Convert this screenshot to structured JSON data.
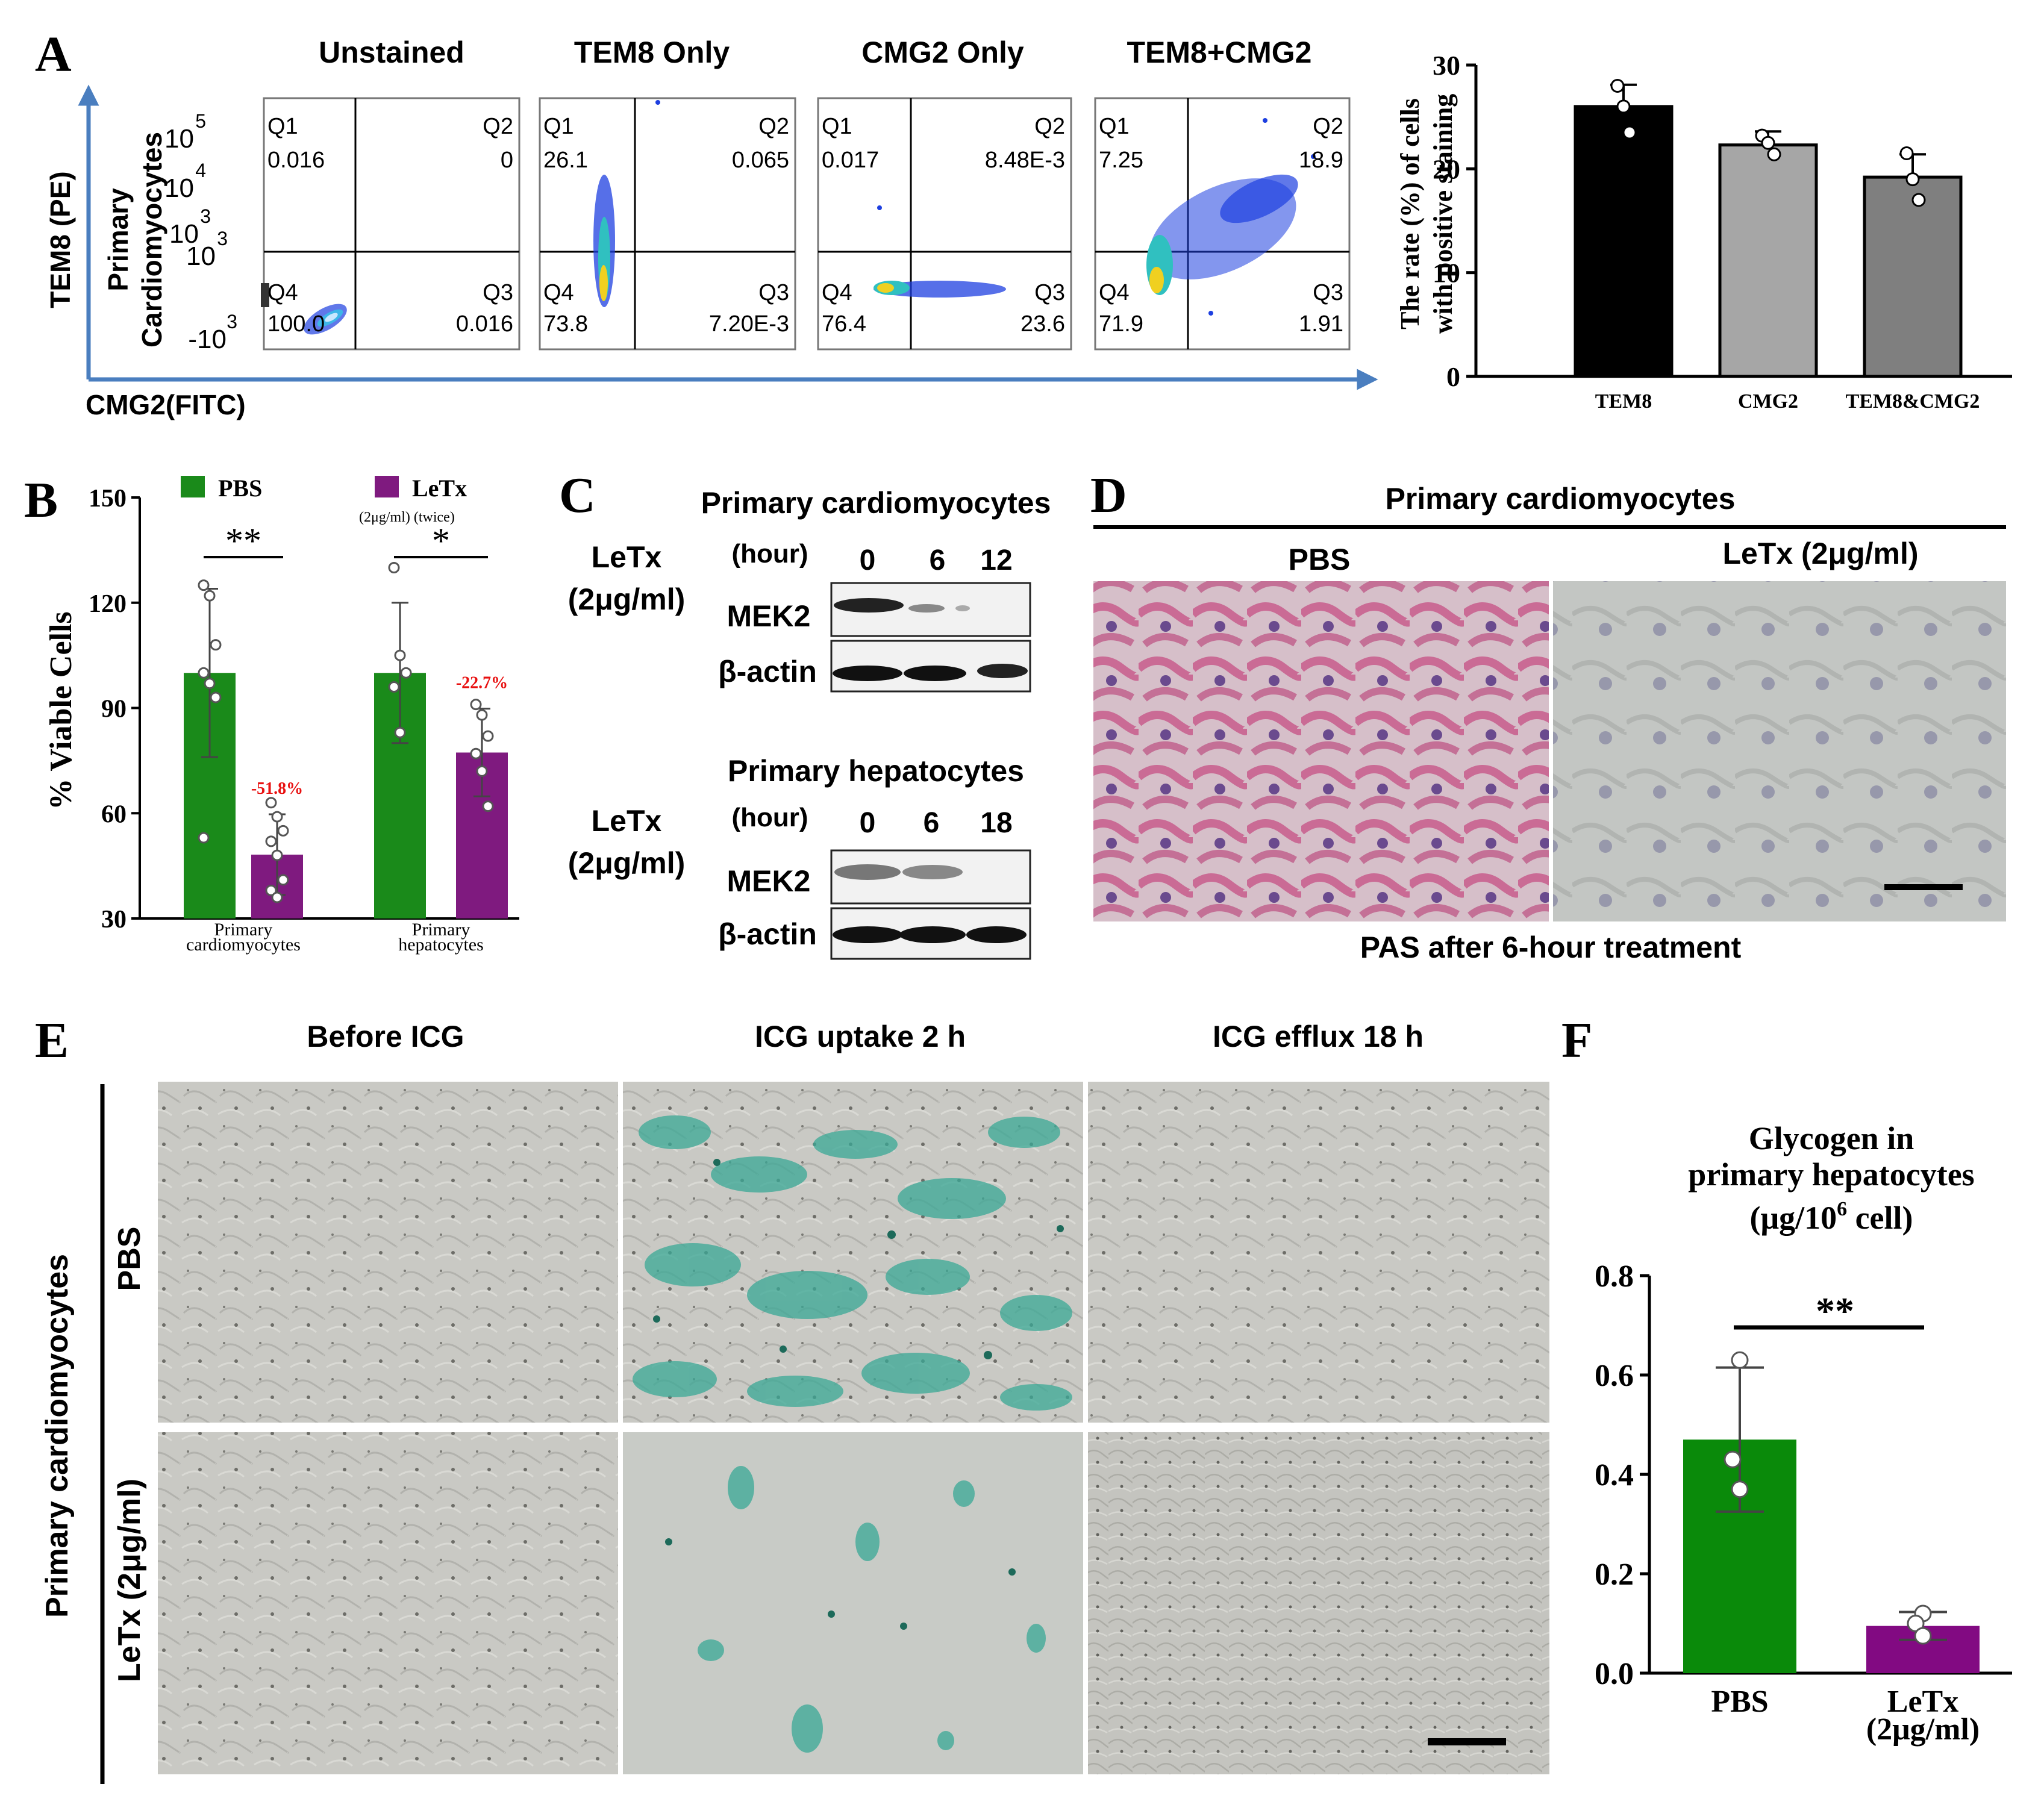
{
  "panels": {
    "A": {
      "letter": "A",
      "axis_y": "TEM8 (PE)",
      "axis_x": "CMG2(FITC)",
      "row_label_1": "Primary",
      "row_label_2": "Cardiomyocytes",
      "y_ticks": [
        {
          "base": "10",
          "exp": "5"
        },
        {
          "base": "10",
          "exp": "4"
        },
        {
          "base": "10",
          "exp": "3"
        },
        {
          "base": "10",
          "exp": "3"
        },
        {
          "base": "-10",
          "exp": "3"
        }
      ],
      "plots": [
        {
          "title": "Unstained",
          "q1": "Q1",
          "q2": "Q2",
          "q3": "Q3",
          "q4": "Q4",
          "v1": "0.016",
          "v2": "0",
          "v3": "0.016",
          "v4": "100.0"
        },
        {
          "title": "TEM8 Only",
          "q1": "Q1",
          "q2": "Q2",
          "q3": "Q3",
          "q4": "Q4",
          "v1": "26.1",
          "v2": "0.065",
          "v3": "7.20E-3",
          "v4": "73.8"
        },
        {
          "title": "CMG2 Only",
          "q1": "Q1",
          "q2": "Q2",
          "q3": "Q3",
          "q4": "Q4",
          "v1": "0.017",
          "v2": "8.48E-3",
          "v3": "23.6",
          "v4": "76.4"
        },
        {
          "title": "TEM8+CMG2",
          "q1": "Q1",
          "q2": "Q2",
          "q3": "Q3",
          "q4": "Q4",
          "v1": "7.25",
          "v2": "18.9",
          "v3": "1.91",
          "v4": "71.9"
        }
      ]
    },
    "B": {
      "letter": "B"
    },
    "C": {
      "letter": "C",
      "title_1": "Primary cardiomyocytes",
      "title_2": "Primary hepatocytes",
      "letx": "LeTx",
      "dose": "(2μg/ml)",
      "hour": "(hour)",
      "times_1": [
        "0",
        "6",
        "12"
      ],
      "times_2": [
        "0",
        "6",
        "18"
      ],
      "band_1": "MEK2",
      "band_2": "β-actin"
    },
    "D": {
      "letter": "D",
      "title": "Primary cardiomyocytes",
      "col_1": "PBS",
      "col_2": "LeTx (2μg/ml)",
      "caption": "PAS after 6-hour treatment"
    },
    "E": {
      "letter": "E",
      "col_1": "Before ICG",
      "col_2": "ICG uptake 2 h",
      "col_3": "ICG efflux 18 h",
      "side_label": "Primary cardiomyocytes",
      "row_1": "PBS",
      "row_2": "LeTx (2μg/ml)"
    },
    "F": {
      "letter": "F"
    }
  },
  "chart_data": [
    {
      "id": "A-bar",
      "type": "bar",
      "ylabel_1": "The rate  (%) of cells",
      "ylabel_2": "with positive staining",
      "ylim": [
        0,
        30
      ],
      "yticks": [
        "0",
        "10",
        "20",
        "30"
      ],
      "categories": [
        "TEM8",
        "CMG2",
        "TEM8&CMG2"
      ],
      "values": [
        26,
        22.3,
        19.2
      ],
      "errors": [
        2.1,
        1.3,
        2.2
      ],
      "points": [
        [
          28,
          26,
          23.5
        ],
        [
          23.2,
          22.5,
          21.4
        ],
        [
          21.5,
          19,
          17
        ]
      ],
      "colors": [
        "#000000",
        "#a6a6a6",
        "#7f7f7f"
      ]
    },
    {
      "id": "B-bar",
      "type": "bar",
      "ylabel": "% Viable Cells",
      "ylim": [
        30,
        150
      ],
      "yticks": [
        "30",
        "60",
        "90",
        "120",
        "150"
      ],
      "group_labels_1": [
        "Primary",
        "Primary"
      ],
      "group_labels_2": [
        "cardiomyocytes",
        "hepatocytes"
      ],
      "legend": {
        "pbs": "PBS",
        "letx": "LeTx",
        "letx_note": "(2μg/ml) (twice)"
      },
      "colors": {
        "pbs": "#1a8a1a",
        "letx": "#7f1a7f"
      },
      "pbs_values": [
        100,
        100
      ],
      "pbs_errors": [
        24,
        20
      ],
      "letx_values": [
        48.2,
        77.3
      ],
      "letx_errors": [
        11.5,
        12.5
      ],
      "pbs_points": [
        [
          125,
          122,
          108,
          100,
          97,
          93,
          53
        ],
        [
          130,
          105,
          100,
          96,
          83
        ]
      ],
      "letx_points": [
        [
          63,
          59,
          55,
          52,
          48,
          41,
          38,
          36
        ],
        [
          91,
          88,
          82,
          77,
          72,
          62
        ]
      ],
      "pct_labels": [
        "-51.8%",
        "-22.7%"
      ],
      "sig_labels": [
        "**",
        "*"
      ]
    },
    {
      "id": "F-bar",
      "type": "bar",
      "title_1": "Glycogen in",
      "title_2": "primary hepatocytes",
      "title_3": "(μg/10",
      "title_3_exp": "6",
      "title_3_end": " cell)",
      "ylim": [
        0,
        0.8
      ],
      "yticks": [
        "0.0",
        "0.2",
        "0.4",
        "0.6",
        "0.8"
      ],
      "categories": [
        "PBS",
        "LeTx"
      ],
      "category_sub": [
        "",
        "(2μg/ml)"
      ],
      "values": [
        0.47,
        0.095
      ],
      "errors": [
        0.145,
        0.028
      ],
      "points": [
        [
          0.63,
          0.43,
          0.37
        ],
        [
          0.12,
          0.1,
          0.075
        ]
      ],
      "colors": [
        "#0a8a0a",
        "#820a82"
      ],
      "sig_label": "**"
    }
  ]
}
